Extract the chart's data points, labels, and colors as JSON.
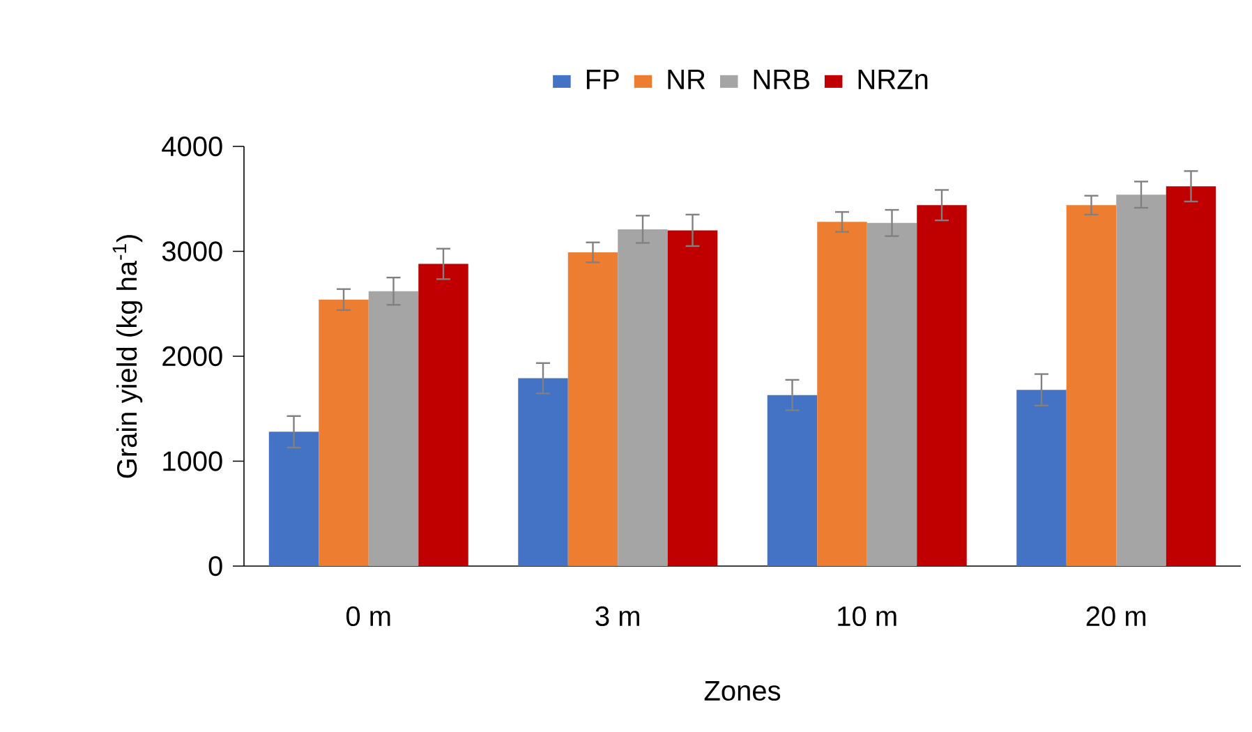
{
  "chart_data": {
    "type": "bar",
    "xlabel": "Zones",
    "ylabel": "Grain yield (kg ha$^{-1}$)",
    "categories": [
      "0 m",
      "3 m",
      "10 m",
      "20 m"
    ],
    "ylim": [
      0,
      4000
    ],
    "yticks": [
      0,
      1000,
      2000,
      3000,
      4000
    ],
    "legend": "top",
    "grid": false,
    "series": [
      {
        "name": "FP",
        "color": "#4472c4",
        "values": [
          1280,
          1790,
          1630,
          1680
        ],
        "errors": [
          150,
          145,
          145,
          150
        ]
      },
      {
        "name": "NR",
        "color": "#ed7d31",
        "values": [
          2540,
          2990,
          3280,
          3440
        ],
        "errors": [
          100,
          95,
          95,
          90
        ]
      },
      {
        "name": "NRB",
        "color": "#a5a5a5",
        "values": [
          2620,
          3210,
          3270,
          3540
        ],
        "errors": [
          130,
          130,
          125,
          125
        ]
      },
      {
        "name": "NRZn",
        "color": "#c00000",
        "values": [
          2880,
          3200,
          3440,
          3620
        ],
        "errors": [
          145,
          150,
          145,
          145
        ]
      }
    ]
  }
}
